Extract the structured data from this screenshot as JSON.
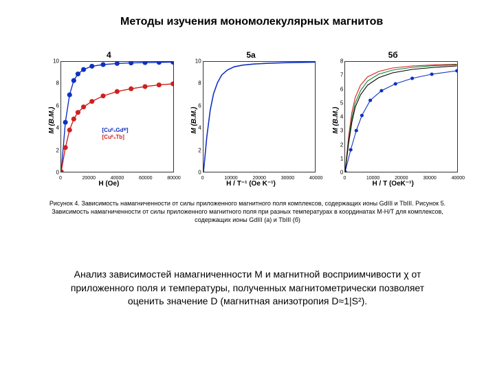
{
  "title": "Методы изучения мономолекулярных магнитов",
  "caption": "Рисунок 4. Зависимость намагниченности от силы приложенного магнитного поля комплексов, содержащих ионы GdIII и TbIII. Рисунок 5. Зависимость намагниченности от силы приложенного магнитного поля при разных температурах в координатах M-H/T для комплексов, содержащих ионы GdIII (а) и TbIII (б)",
  "analysis": "Анализ зависимостей намагниченности М и магнитной восприимчивости χ от приложенного поля и температуры, полученных магнитометрически позволяет оценить значение D (магнитная анизотропия D≈1|S²).",
  "panels": {
    "p4": {
      "label": "4",
      "ylabel": "M (B.M.)",
      "xlabel": "H (Oe)",
      "ylim": [
        0,
        10
      ],
      "ytick_step": 2,
      "xlim": [
        0,
        80000
      ],
      "xtick_step": 20000,
      "legend": {
        "top_pct": 55,
        "left_pct": 45,
        "items": [
          {
            "text": "[Cuᴵᴵ₃Gdᴵᴵᴵ]",
            "color": "#1030c0"
          },
          {
            "text": "[Cuᴵᴵ₃Tb]",
            "color": "#d02020"
          }
        ]
      },
      "series": [
        {
          "color": "#1030c0",
          "width": 1.4,
          "marker": "dot",
          "marker_size": 2.2,
          "xs": [
            0,
            3000,
            6000,
            9000,
            12000,
            16000,
            22000,
            30000,
            40000,
            50000,
            60000,
            70000,
            80000
          ],
          "ys": [
            0,
            4.5,
            7.0,
            8.3,
            8.9,
            9.3,
            9.6,
            9.75,
            9.85,
            9.9,
            9.93,
            9.95,
            9.97
          ]
        },
        {
          "color": "#d02020",
          "width": 1.4,
          "marker": "dot",
          "marker_size": 2.2,
          "xs": [
            0,
            3000,
            6000,
            9000,
            12000,
            16000,
            22000,
            30000,
            40000,
            50000,
            60000,
            70000,
            80000
          ],
          "ys": [
            0,
            2.2,
            3.8,
            4.8,
            5.4,
            5.9,
            6.4,
            6.9,
            7.3,
            7.55,
            7.75,
            7.9,
            8.0
          ]
        }
      ]
    },
    "p5a": {
      "label": "5а",
      "ylabel": "M (B.M.)",
      "xlabel": "H / T⁻¹ (Oe K⁻¹)",
      "ylim": [
        0,
        10
      ],
      "ytick_step": 2,
      "xlim": [
        0,
        40000
      ],
      "xtick_step": 10000,
      "series": [
        {
          "color": "#1030c0",
          "width": 1.6,
          "marker": "none",
          "xs": [
            0,
            1200,
            2400,
            3600,
            5000,
            6500,
            8500,
            11000,
            14000,
            18000,
            23000,
            29000,
            35000,
            40000
          ],
          "ys": [
            0,
            3.2,
            5.6,
            7.1,
            8.1,
            8.8,
            9.25,
            9.55,
            9.7,
            9.8,
            9.87,
            9.92,
            9.95,
            9.97
          ]
        }
      ]
    },
    "p5b": {
      "label": "5б",
      "ylabel": "M (B.M.)",
      "xlabel": "H / T (OeK⁻¹)",
      "ylim": [
        0,
        8
      ],
      "ytick_step": 1,
      "xlim": [
        0,
        40000
      ],
      "xtick_step": 10000,
      "series": [
        {
          "color": "#1030c0",
          "width": 1.1,
          "marker": "dot",
          "marker_size": 1.6,
          "xs": [
            0,
            2000,
            4000,
            6000,
            9000,
            13000,
            18000,
            24000,
            31000,
            40000
          ],
          "ys": [
            0,
            1.6,
            3.0,
            4.1,
            5.2,
            5.9,
            6.4,
            6.8,
            7.1,
            7.35
          ]
        },
        {
          "color": "#d02020",
          "width": 1.1,
          "marker": "none",
          "xs": [
            0,
            1200,
            2400,
            3600,
            5500,
            8000,
            12000,
            17000,
            24000,
            32000,
            40000
          ],
          "ys": [
            0,
            2.5,
            4.3,
            5.4,
            6.3,
            6.9,
            7.3,
            7.55,
            7.7,
            7.78,
            7.82
          ]
        },
        {
          "color": "#108030",
          "width": 1.1,
          "marker": "none",
          "xs": [
            0,
            1200,
            2400,
            3600,
            5500,
            8000,
            12000,
            17000,
            24000,
            32000,
            40000
          ],
          "ys": [
            0,
            2.2,
            3.9,
            5.0,
            5.9,
            6.6,
            7.1,
            7.4,
            7.6,
            7.72,
            7.78
          ]
        },
        {
          "color": "#000000",
          "width": 1.1,
          "marker": "none",
          "xs": [
            0,
            1200,
            2400,
            3600,
            5500,
            8000,
            12000,
            17000,
            24000,
            32000,
            40000
          ],
          "ys": [
            0,
            2.0,
            3.6,
            4.7,
            5.6,
            6.3,
            6.85,
            7.2,
            7.45,
            7.6,
            7.7
          ]
        }
      ]
    }
  }
}
